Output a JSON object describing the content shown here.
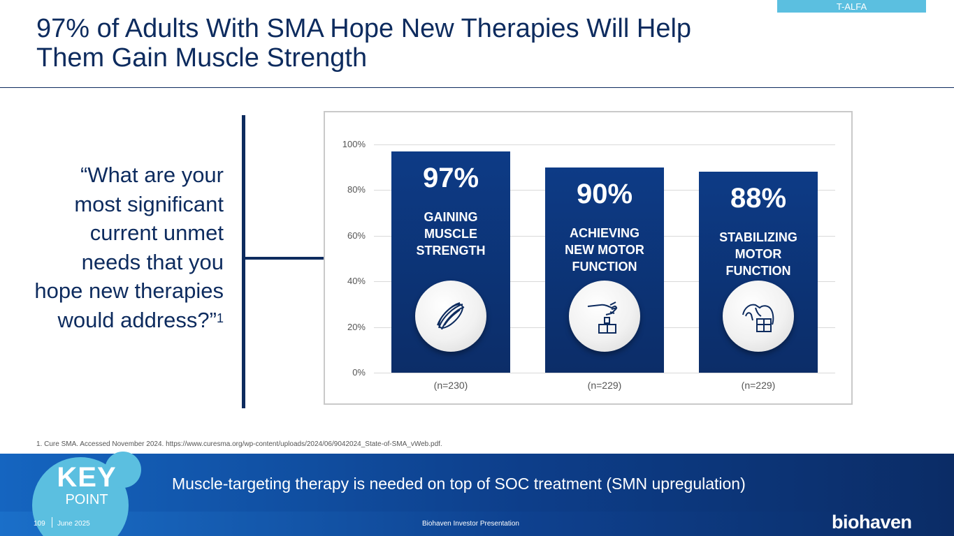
{
  "tag": "T-ALFA",
  "title": {
    "line1": "97% of Adults With SMA Hope New Therapies Will Help",
    "line2": "Them Gain Muscle Strength"
  },
  "quote": {
    "text": "“What are your most significant current unmet needs that you hope new therapies would address?”",
    "ref": "1"
  },
  "chart_data": {
    "type": "bar",
    "title": "",
    "xlabel": "",
    "ylabel": "",
    "ylim": [
      0,
      100
    ],
    "yticks": [
      "0%",
      "20%",
      "40%",
      "60%",
      "80%",
      "100%"
    ],
    "categories": [
      "(n=230)",
      "(n=229)",
      "(n=229)"
    ],
    "values": [
      97,
      90,
      88
    ],
    "value_labels": [
      "97%",
      "90%",
      "88%"
    ],
    "bar_labels": [
      [
        "GAINING",
        "MUSCLE",
        "STRENGTH"
      ],
      [
        "ACHIEVING",
        "NEW MOTOR",
        "FUNCTION"
      ],
      [
        "STABILIZING",
        "MOTOR",
        "FUNCTION"
      ]
    ],
    "icons": [
      "muscle-icon",
      "hand-placing-blocks-icon",
      "hand-grasping-block-icon"
    ]
  },
  "footnote": "1. Cure SMA. Accessed November 2024. https://www.curesma.org/wp-content/uploads/2024/06/9042024_State-of-SMA_vWeb.pdf.",
  "keypoint": {
    "key": "KEY",
    "point": "POINT",
    "message": "Muscle-targeting therapy is needed on top of SOC treatment (SMN upregulation)"
  },
  "footer": {
    "page": "109",
    "date": "June 2025",
    "center": "Biohaven Investor Presentation",
    "logo": "biohaven"
  },
  "colors": {
    "navy": "#0d2b5e",
    "bar": "#0d3b86",
    "accent": "#5bbfe0"
  }
}
